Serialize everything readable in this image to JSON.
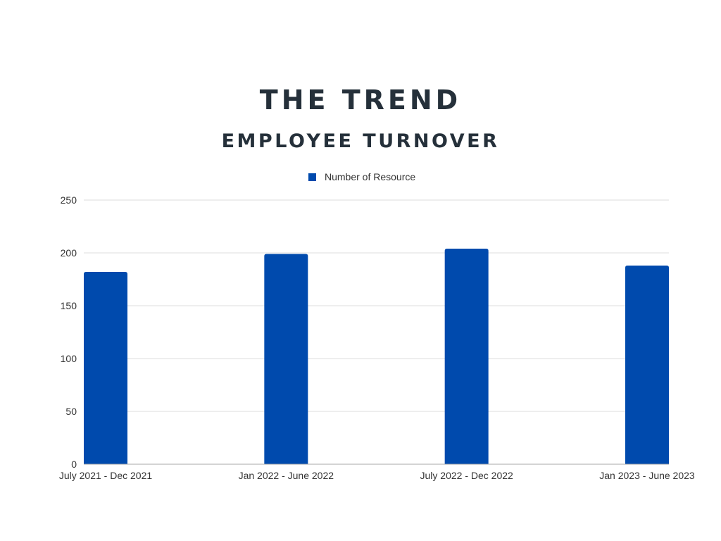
{
  "chart_data": {
    "type": "bar",
    "title": "THE TREND",
    "subtitle": "EMPLOYEE TURNOVER",
    "categories": [
      "July 2021 - Dec 2021",
      "Jan 2022 - June 2022",
      "July 2022  - Dec 2022",
      "Jan 2023 - June 2023"
    ],
    "series": [
      {
        "name": "Number of Resource",
        "values": [
          182,
          199,
          204,
          188
        ],
        "color": "#004aad"
      }
    ],
    "xlabel": "",
    "ylabel": "",
    "ylim": [
      0,
      250
    ],
    "yticks": [
      0,
      50,
      100,
      150,
      200,
      250
    ],
    "grid": true,
    "legend_position": "top-center"
  }
}
